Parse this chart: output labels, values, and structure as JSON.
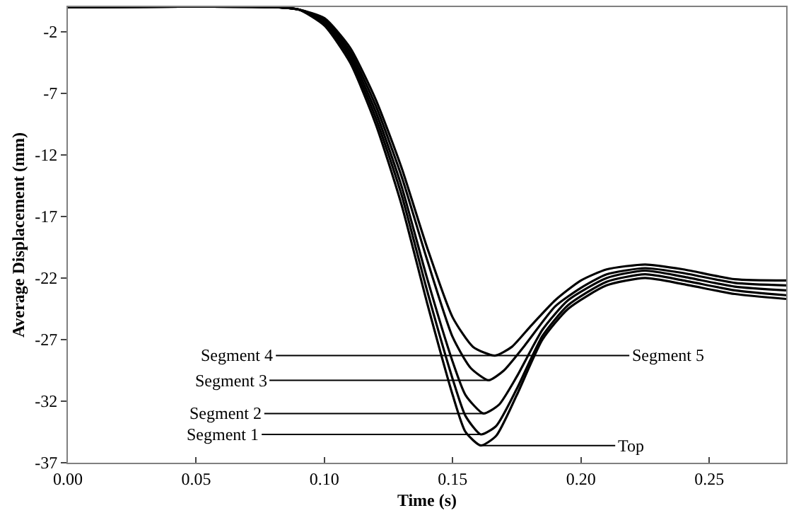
{
  "chart_data": {
    "type": "line",
    "xlabel": "Time (s)",
    "ylabel": "Average Displacement (mm)",
    "xlim": [
      0,
      0.28
    ],
    "xticks": [
      {
        "value": 0,
        "label": "0.00"
      },
      {
        "value": 0.05,
        "label": "0.05"
      },
      {
        "value": 0.1,
        "label": "0.10"
      },
      {
        "value": 0.15,
        "label": "0.15"
      },
      {
        "value": 0.2,
        "label": "0.20"
      },
      {
        "value": 0.25,
        "label": "0.25"
      }
    ],
    "ylim": [
      -37,
      0
    ],
    "yticks": [
      -2,
      -7,
      -12,
      -17,
      -22,
      -27,
      -32,
      -37
    ],
    "legend": false,
    "marker": "none",
    "line_style": "solid",
    "series": [
      {
        "color": "#000000",
        "x": [
          0,
          0.08,
          0.09,
          0.1,
          0.11,
          0.12,
          0.13,
          0.14,
          0.15,
          0.155,
          0.161,
          0.167,
          0.175,
          0.185,
          0.195,
          0.21,
          0.225,
          0.24,
          0.26,
          0.28
        ],
        "values": [
          0,
          0,
          -0.2,
          -1.5,
          -4.5,
          -9.5,
          -16,
          -24,
          -31.5,
          -34.5,
          -35.6,
          -34.8,
          -31.5,
          -27,
          -24.5,
          -22.6,
          -22.0,
          -22.5,
          -23.3,
          -23.7
        ]
      },
      {
        "color": "#000000",
        "x": [
          0,
          0.08,
          0.09,
          0.1,
          0.11,
          0.12,
          0.13,
          0.14,
          0.15,
          0.155,
          0.161,
          0.167,
          0.175,
          0.185,
          0.195,
          0.21,
          0.225,
          0.24,
          0.26,
          0.28
        ],
        "values": [
          0,
          0,
          -0.2,
          -1.3,
          -4.2,
          -9,
          -15.2,
          -23,
          -30.2,
          -33.2,
          -34.7,
          -34.0,
          -31,
          -26.7,
          -24.2,
          -22.3,
          -21.7,
          -22.2,
          -23.0,
          -23.4
        ]
      },
      {
        "color": "#000000",
        "x": [
          0,
          0.08,
          0.09,
          0.1,
          0.11,
          0.12,
          0.13,
          0.14,
          0.15,
          0.155,
          0.162,
          0.168,
          0.175,
          0.185,
          0.195,
          0.21,
          0.225,
          0.24,
          0.26,
          0.28
        ],
        "values": [
          0,
          0,
          -0.2,
          -1.1,
          -3.9,
          -8.5,
          -14.5,
          -22,
          -28.8,
          -31.5,
          -33.0,
          -32.3,
          -30,
          -26.2,
          -23.8,
          -22.0,
          -21.4,
          -21.9,
          -22.7,
          -23.0
        ]
      },
      {
        "color": "#000000",
        "x": [
          0,
          0.08,
          0.09,
          0.1,
          0.11,
          0.12,
          0.13,
          0.14,
          0.15,
          0.157,
          0.164,
          0.17,
          0.178,
          0.19,
          0.2,
          0.21,
          0.225,
          0.24,
          0.26,
          0.28
        ],
        "values": [
          0,
          0,
          -0.2,
          -1.0,
          -3.6,
          -8,
          -13.7,
          -20.5,
          -26.8,
          -29.3,
          -30.3,
          -29.5,
          -27.5,
          -24.3,
          -22.8,
          -21.7,
          -21.2,
          -21.6,
          -22.4,
          -22.6
        ]
      },
      {
        "color": "#000000",
        "x": [
          0,
          0.08,
          0.09,
          0.1,
          0.11,
          0.12,
          0.13,
          0.14,
          0.15,
          0.158,
          0.1665,
          0.173,
          0.18,
          0.19,
          0.2,
          0.21,
          0.225,
          0.24,
          0.26,
          0.28
        ],
        "values": [
          0,
          0,
          -0.2,
          -0.9,
          -3.3,
          -7.5,
          -13,
          -19.5,
          -25.2,
          -27.6,
          -28.3,
          -27.6,
          -26,
          -23.8,
          -22.2,
          -21.3,
          -20.9,
          -21.3,
          -22.1,
          -22.2
        ]
      }
    ],
    "annotations": [
      {
        "text": "Segment 4",
        "x": 0.1665,
        "y": -28.3
      },
      {
        "text": "Segment 3",
        "x": 0.164,
        "y": -30.3
      },
      {
        "text": "Segment 2",
        "x": 0.162,
        "y": -33.0
      },
      {
        "text": "Segment 1",
        "x": 0.161,
        "y": -34.7
      },
      {
        "text": "Segment 5",
        "x": 0.1665,
        "y": -28.3
      },
      {
        "text": "Top",
        "x": 0.161,
        "y": -35.6
      }
    ]
  }
}
